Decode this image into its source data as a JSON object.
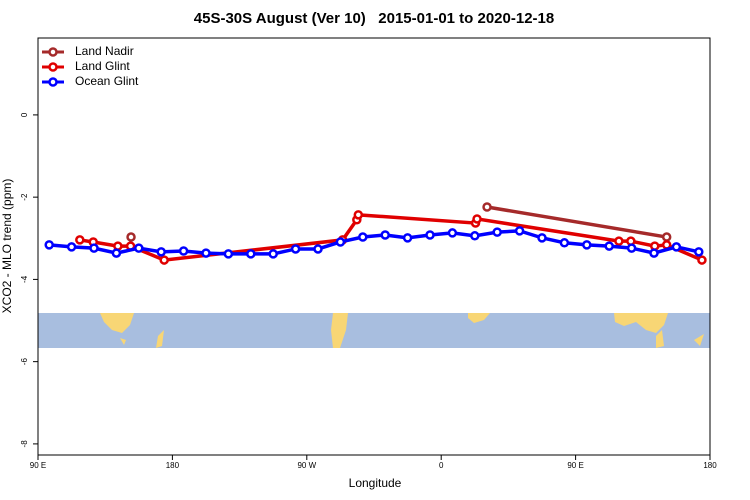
{
  "chart_data": {
    "type": "line",
    "title": "45S-30S August (Ver 10)   2015-01-01 to 2020-12-18",
    "xlabel": "Longitude",
    "ylabel": "XCO2 - MLO trend (ppm)",
    "xlim": [
      90,
      540
    ],
    "ylim": [
      -8.27,
      1.87
    ],
    "xticks": [
      {
        "value": 90,
        "label": "90 E"
      },
      180,
      {
        "value": 270,
        "label": "90 W"
      },
      {
        "value": 360,
        "label": "0"
      },
      {
        "value": 450,
        "label": "90 E"
      },
      {
        "value": 540,
        "label": "180"
      }
    ],
    "yticks": [
      0,
      -2,
      -4,
      -6,
      -8
    ],
    "legend": "top-left",
    "series": [
      {
        "name": "Land Nadir",
        "color": "#a52a2a",
        "x": [
          152.3,
          383.5,
          390.7,
          511
        ],
        "values": [
          -2.97,
          null,
          -2.24,
          -2.97
        ]
      },
      {
        "name": "Land Glint",
        "color": "#e00000",
        "x": [
          118,
          127,
          143.5,
          152,
          174.5,
          294,
          303.5,
          304.5,
          383,
          384,
          479,
          487,
          503,
          511,
          534.6
        ],
        "values": [
          -3.04,
          -3.09,
          -3.19,
          -3.19,
          -3.53,
          -3.04,
          -2.55,
          -2.43,
          -2.63,
          -2.53,
          -3.07,
          -3.07,
          -3.19,
          -3.16,
          -3.53
        ]
      },
      {
        "name": "Ocean Glint",
        "color": "#0000ff",
        "x": [
          97.5,
          112.5,
          127.5,
          142.5,
          157.5,
          172.5,
          187.5,
          202.5,
          217.5,
          232.5,
          247.5,
          262.5,
          277.5,
          292.5,
          307.5,
          322.5,
          337.5,
          352.5,
          367.5,
          382.5,
          397.5,
          412.5,
          427.5,
          442.5,
          457.5,
          472.5,
          487.5,
          502.5,
          517.5,
          532.5
        ],
        "values": [
          -3.16,
          -3.21,
          -3.24,
          -3.36,
          -3.24,
          -3.33,
          -3.31,
          -3.36,
          -3.38,
          -3.38,
          -3.38,
          -3.26,
          -3.26,
          -3.09,
          -2.97,
          -2.92,
          -2.99,
          -2.92,
          -2.87,
          -2.94,
          -2.85,
          -2.82,
          -2.99,
          -3.11,
          -3.16,
          -3.19,
          -3.24,
          -3.36,
          -3.21,
          -3.33
        ]
      }
    ]
  }
}
